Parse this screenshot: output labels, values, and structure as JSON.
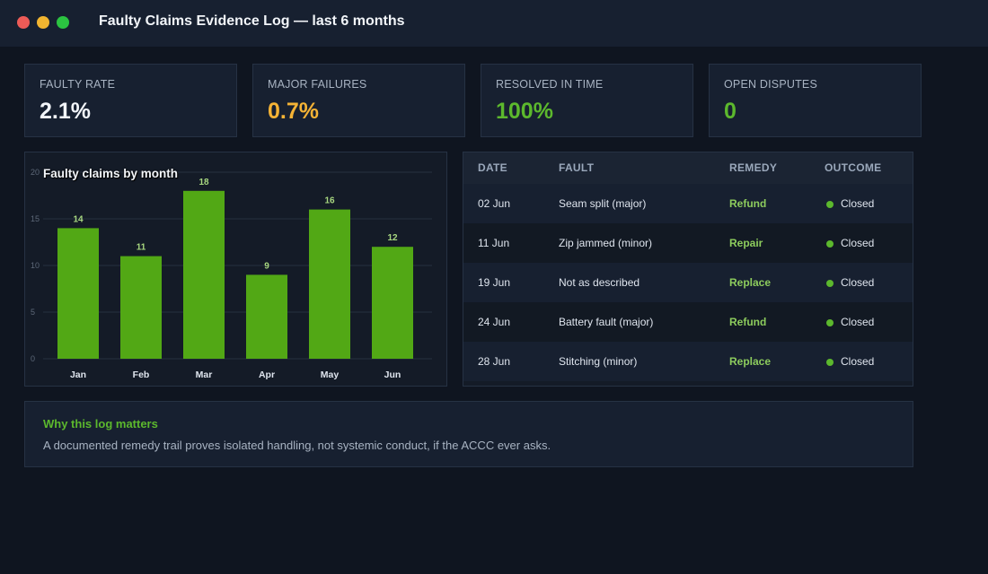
{
  "window": {
    "title": "Faulty Claims Evidence Log — last 6 months"
  },
  "stats": [
    {
      "label": "FAULTY RATE",
      "value": "2.1%",
      "color": "#f2f5f9"
    },
    {
      "label": "MAJOR FAILURES",
      "value": "0.7%",
      "color": "#f5b335"
    },
    {
      "label": "RESOLVED IN TIME",
      "value": "100%",
      "color": "#5cb82d"
    },
    {
      "label": "OPEN DISPUTES",
      "value": "0",
      "color": "#5cb82d"
    }
  ],
  "chart_data": {
    "type": "bar",
    "title": "Faulty claims by month",
    "categories": [
      "Jan",
      "Feb",
      "Mar",
      "Apr",
      "May",
      "Jun"
    ],
    "values": [
      14,
      11,
      18,
      9,
      16,
      12
    ],
    "ylim": [
      0,
      20
    ],
    "yticks": [
      0,
      5,
      10,
      15,
      20
    ],
    "grid": true,
    "bar_color": "#52a815",
    "data_label_color": "#a8d880"
  },
  "table": {
    "headers": [
      "DATE",
      "FAULT",
      "REMEDY",
      "OUTCOME"
    ],
    "rows": [
      {
        "date": "02 Jun",
        "fault": "Seam split (major)",
        "remedy": "Refund",
        "outcome": "Closed"
      },
      {
        "date": "11 Jun",
        "fault": "Zip jammed (minor)",
        "remedy": "Repair",
        "outcome": "Closed"
      },
      {
        "date": "19 Jun",
        "fault": "Not as described",
        "remedy": "Replace",
        "outcome": "Closed"
      },
      {
        "date": "24 Jun",
        "fault": "Battery fault (major)",
        "remedy": "Refund",
        "outcome": "Closed"
      },
      {
        "date": "28 Jun",
        "fault": "Stitching (minor)",
        "remedy": "Replace",
        "outcome": "Closed"
      }
    ]
  },
  "note": {
    "title": "Why this log matters",
    "body": "A documented remedy trail proves isolated handling, not systemic conduct, if the ACCC ever asks."
  }
}
